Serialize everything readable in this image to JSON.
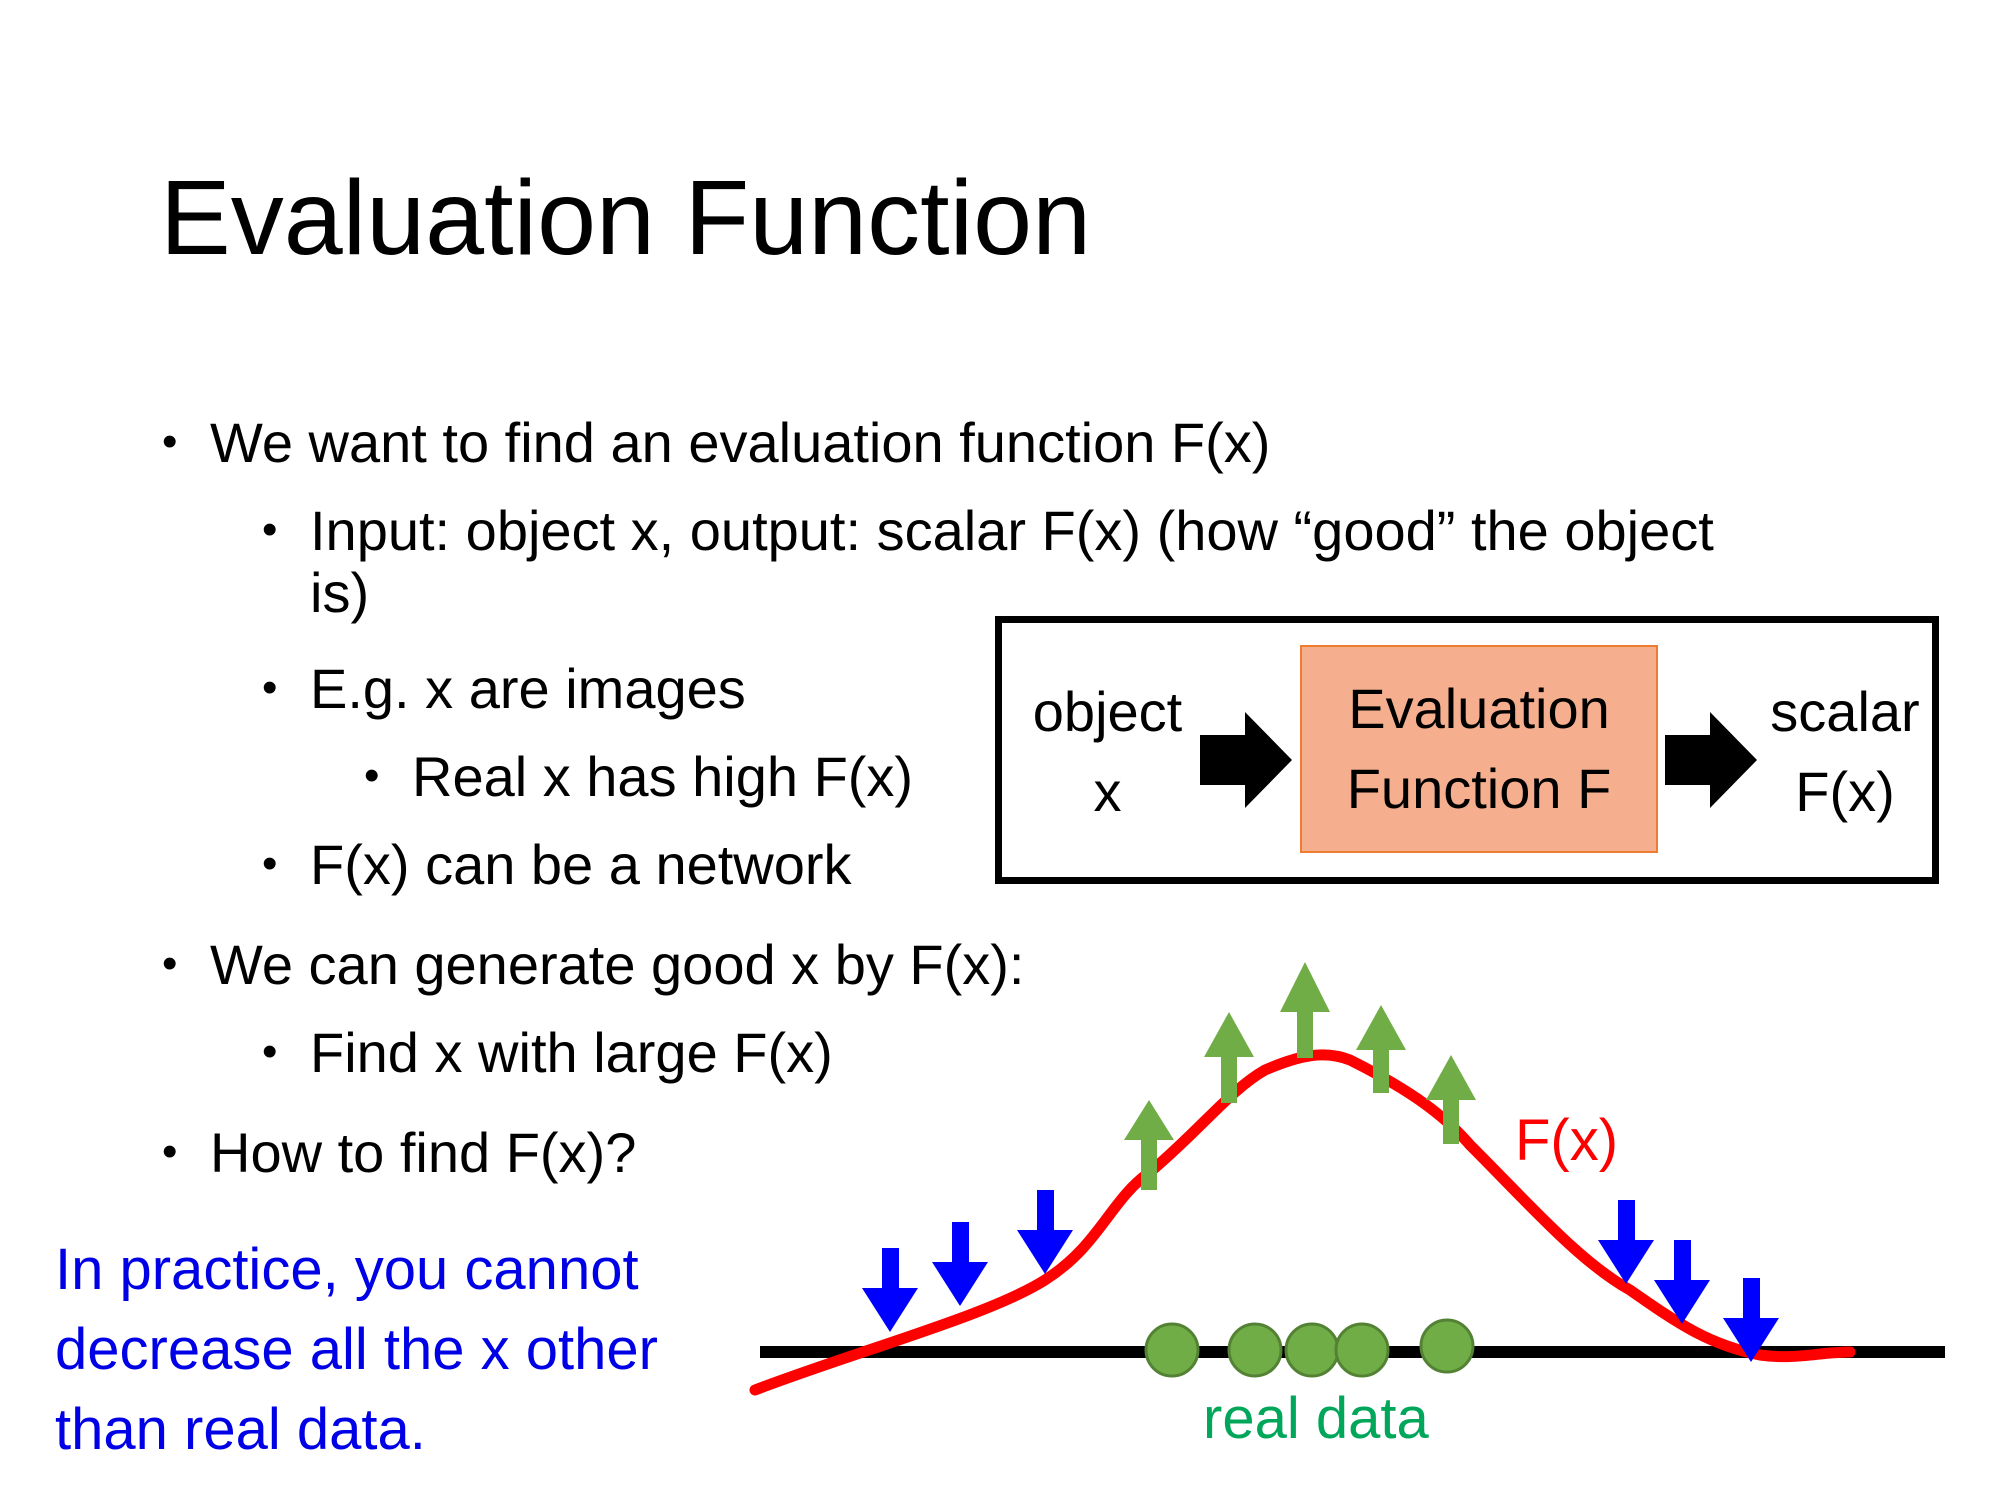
{
  "slide": {
    "title": "Evaluation Function",
    "bullets": {
      "b1": "We want to find an evaluation function F(x)",
      "b1_1": "Input: object x, output: scalar F(x) (how “good” the object is)",
      "b1_2": "E.g. x are images",
      "b1_2_1": "Real x has high F(x)",
      "b1_3": "F(x) can be a network",
      "b2": "We can generate good x by F(x):",
      "b2_1": "Find x with large F(x)",
      "b3": "How to find F(x)?"
    },
    "note": "In practice, you cannot decrease all the x other than real data."
  },
  "flow": {
    "input_line1": "object",
    "input_line2": "x",
    "box_line1": "Evaluation",
    "box_line2": "Function F",
    "output_line1": "scalar",
    "output_line2": "F(x)"
  },
  "graph": {
    "curve_label": "F(x)",
    "data_label": "real data",
    "colors": {
      "curve": "#ff0000",
      "up_arrow": "#70ad47",
      "down_arrow": "#0000ff",
      "data_point": "#70ad47",
      "axis": "#000000"
    }
  }
}
